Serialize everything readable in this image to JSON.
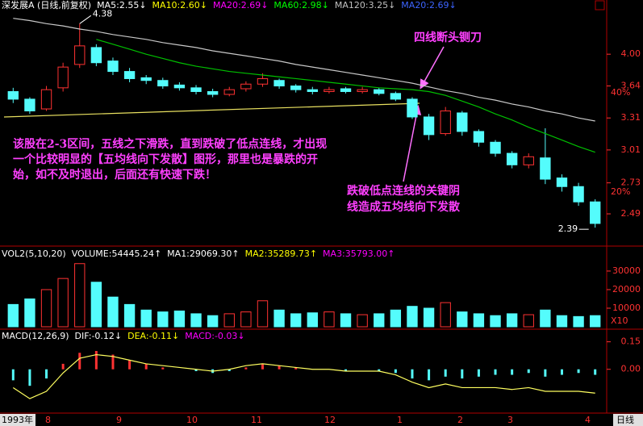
{
  "chart_data": [
    {
      "type": "candlestick",
      "legend": [
        {
          "text": "深发展A (日线,前复权)",
          "color": "#ffffff"
        },
        {
          "text": "MA5:2.55↓",
          "color": "#ffffff"
        },
        {
          "text": "MA10:2.60↓",
          "color": "#ffff00"
        },
        {
          "text": "MA20:2.69↓",
          "color": "#ff00ff"
        },
        {
          "text": "MA60:2.98↓",
          "color": "#00ff00"
        },
        {
          "text": "MA120:3.25↓",
          "color": "#c0c0c0"
        },
        {
          "text": "MA20:2.69↓",
          "color": "#3c64ff"
        }
      ],
      "categories": [
        null,
        null,
        null,
        null,
        null,
        null,
        null,
        null,
        null,
        null,
        null,
        null,
        null,
        null,
        null,
        null,
        null,
        null,
        null,
        null,
        null,
        null,
        null,
        null,
        null,
        null,
        null,
        null,
        null,
        null,
        null,
        null,
        null,
        null,
        null,
        null
      ],
      "open": [
        3.58,
        3.5,
        3.4,
        3.62,
        3.88,
        4.08,
        3.92,
        3.8,
        3.73,
        3.7,
        3.65,
        3.62,
        3.58,
        3.55,
        3.61,
        3.66,
        3.7,
        3.64,
        3.6,
        3.58,
        3.61,
        3.58,
        3.6,
        3.56,
        3.5,
        3.32,
        3.16,
        3.36,
        3.18,
        3.08,
        2.98,
        2.88,
        2.94,
        2.77,
        2.7,
        2.58
      ],
      "high": [
        3.62,
        3.52,
        3.64,
        3.9,
        4.38,
        4.12,
        3.96,
        3.84,
        3.76,
        3.73,
        3.68,
        3.65,
        3.61,
        3.63,
        3.69,
        3.78,
        3.72,
        3.66,
        3.63,
        3.63,
        3.63,
        3.63,
        3.62,
        3.58,
        3.52,
        3.35,
        3.42,
        3.38,
        3.2,
        3.1,
        3.0,
        2.98,
        3.21,
        2.8,
        2.73,
        2.6
      ],
      "low": [
        3.46,
        3.35,
        3.38,
        3.58,
        3.84,
        3.86,
        3.76,
        3.68,
        3.66,
        3.61,
        3.59,
        3.55,
        3.52,
        3.53,
        3.58,
        3.63,
        3.61,
        3.57,
        3.55,
        3.56,
        3.56,
        3.56,
        3.54,
        3.48,
        3.3,
        3.1,
        3.14,
        3.14,
        3.04,
        2.95,
        2.85,
        2.85,
        2.72,
        2.66,
        2.55,
        2.39
      ],
      "close": [
        3.5,
        3.38,
        3.6,
        3.85,
        4.1,
        3.9,
        3.8,
        3.72,
        3.7,
        3.64,
        3.62,
        3.58,
        3.55,
        3.6,
        3.66,
        3.72,
        3.64,
        3.6,
        3.58,
        3.6,
        3.58,
        3.6,
        3.56,
        3.5,
        3.32,
        3.15,
        3.38,
        3.18,
        3.08,
        2.98,
        2.88,
        2.95,
        2.76,
        2.7,
        2.58,
        2.42
      ],
      "series": [
        {
          "color": "#c8c8c8",
          "values": [
            4.45,
            4.42,
            4.38,
            4.35,
            4.31,
            4.28,
            4.24,
            4.21,
            4.18,
            4.14,
            4.11,
            4.08,
            4.04,
            4.01,
            3.98,
            3.95,
            3.92,
            3.88,
            3.85,
            3.82,
            3.79,
            3.76,
            3.73,
            3.7,
            3.67,
            3.63,
            3.59,
            3.56,
            3.52,
            3.49,
            3.45,
            3.42,
            3.38,
            3.35,
            3.31,
            3.28
          ]
        },
        {
          "color": "#00c000",
          "values": [
            null,
            null,
            null,
            null,
            null,
            4.18,
            4.12,
            4.06,
            4.0,
            3.95,
            3.9,
            3.86,
            3.83,
            3.8,
            3.78,
            3.76,
            3.74,
            3.72,
            3.7,
            3.68,
            3.66,
            3.64,
            3.62,
            3.61,
            3.6,
            3.58,
            3.54,
            3.48,
            3.42,
            3.35,
            3.29,
            3.22,
            3.16,
            3.1,
            3.04,
            2.99
          ]
        }
      ],
      "up_color": "#ff3232",
      "down_color": "#54fcfc",
      "ylim": [
        2.29,
        4.5
      ],
      "log_scale": true,
      "yticks": [
        {
          "value": 4,
          "label": "4.00"
        },
        3.64,
        3.31,
        3.01,
        2.73,
        2.49
      ],
      "percent_labels": [
        "40%",
        "20%"
      ]
    },
    {
      "type": "bar",
      "legend": [
        {
          "text": "VOL2(5,10,20)",
          "color": "#ffffff"
        },
        {
          "text": "VOLUME:54445.24↑",
          "color": "#ffffff"
        },
        {
          "text": "MA1:29069.30↑",
          "color": "#ffffff"
        },
        {
          "text": "MA2:35289.73↑",
          "color": "#ffff00"
        },
        {
          "text": "MA3:35793.00↑",
          "color": "#ff00ff"
        }
      ],
      "values": [
        12000,
        15000,
        20000,
        26000,
        34000,
        24000,
        16000,
        12000,
        9000,
        8000,
        8500,
        7000,
        6000,
        7000,
        8000,
        14000,
        9000,
        7000,
        7500,
        8000,
        7000,
        6500,
        7000,
        9000,
        11000,
        10000,
        13000,
        8000,
        7000,
        6000,
        7000,
        6500,
        9000,
        6000,
        5500,
        6000
      ],
      "ylim": [
        0,
        37800
      ],
      "yticks": [
        30000,
        20000,
        10000
      ],
      "unit_label": "X10"
    },
    {
      "type": "bar",
      "legend": [
        {
          "text": "MACD(12,26,9)",
          "color": "#ffffff"
        },
        {
          "text": "DIF:-0.12↓",
          "color": "#ffffff"
        },
        {
          "text": "DEA:-0.11↓",
          "color": "#ffff00"
        },
        {
          "text": "MACD:-0.03↓",
          "color": "#ff00ff"
        }
      ],
      "values": [
        -0.06,
        -0.09,
        -0.05,
        0.03,
        0.09,
        0.1,
        0.08,
        0.05,
        0.03,
        0.01,
        0.0,
        -0.01,
        -0.02,
        -0.01,
        0.01,
        0.03,
        0.02,
        0.01,
        0.0,
        0.0,
        -0.01,
        0.0,
        -0.01,
        -0.02,
        -0.05,
        -0.06,
        -0.04,
        -0.05,
        -0.04,
        -0.03,
        -0.03,
        -0.02,
        -0.04,
        -0.03,
        -0.02,
        -0.03
      ],
      "series": [
        {
          "color": "#ffff60",
          "values": [
            -0.1,
            -0.16,
            -0.12,
            -0.02,
            0.06,
            0.08,
            0.07,
            0.05,
            0.03,
            0.02,
            0.01,
            0.0,
            -0.01,
            0.0,
            0.02,
            0.03,
            0.02,
            0.01,
            0.0,
            0.0,
            -0.01,
            -0.01,
            -0.01,
            -0.03,
            -0.07,
            -0.1,
            -0.08,
            -0.1,
            -0.1,
            -0.1,
            -0.11,
            -0.1,
            -0.12,
            -0.12,
            -0.12,
            -0.13
          ]
        }
      ],
      "pos_color": "#ff3232",
      "neg_color": "#54fcfc",
      "ylim": [
        -0.23,
        0.21
      ],
      "yticks": [
        0.15,
        {
          "value": 0,
          "label": "0.00"
        }
      ]
    }
  ],
  "annotations": {
    "top": "四线断头铡刀",
    "left": [
      "该股在2-3区间，五线之下滑跌，直到跌破了低点连线，才出现",
      "一个比较明显的【五均线向下发散】图形，那里也是暴跌的开",
      "始，如不及时退出，后面还有快速下跌！"
    ],
    "bottom": [
      "跌破低点连线的关键阴",
      "线造成五均线向下发散"
    ]
  },
  "time_axis": {
    "labels": [
      "1993年",
      "8",
      "9",
      "10",
      "11",
      "12",
      "1",
      "2",
      "3",
      "4"
    ],
    "period": "日线"
  }
}
